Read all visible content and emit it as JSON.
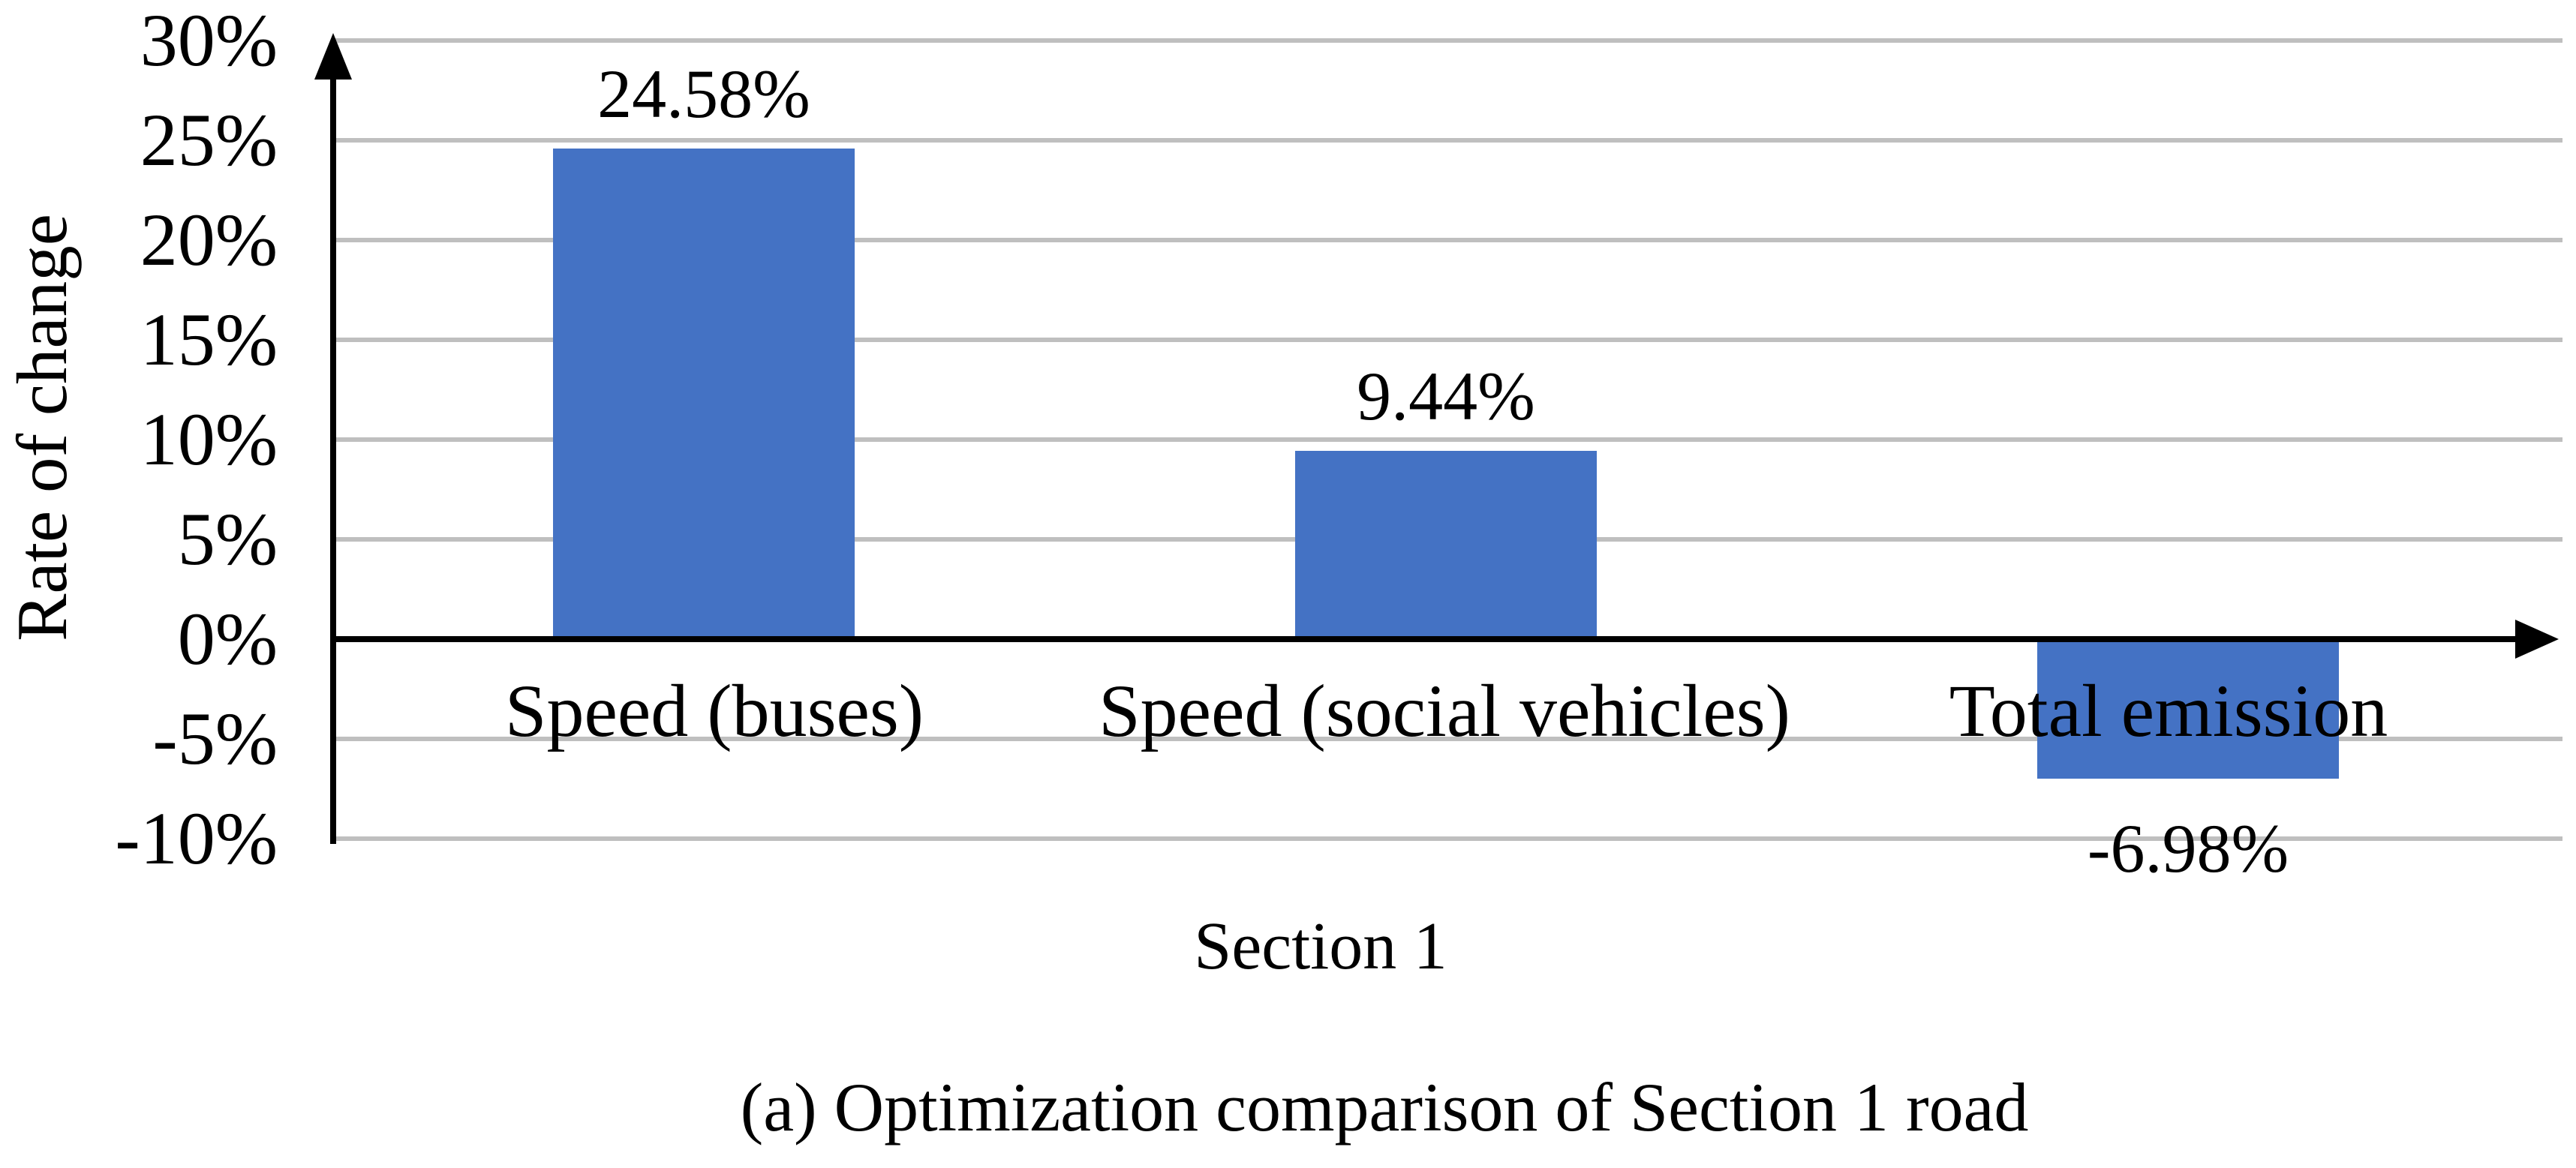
{
  "figure": {
    "caption": "(a) Optimization comparison of Section 1 road"
  },
  "chart_data": {
    "type": "bar",
    "title": "",
    "xlabel": "Section 1",
    "ylabel": "Rate of change",
    "categories": [
      "Speed (buses)",
      "Speed (social vehicles)",
      "Total emission"
    ],
    "values": [
      24.58,
      9.44,
      -6.98
    ],
    "data_labels": [
      "24.58%",
      "9.44%",
      "-6.98%"
    ],
    "y_tick_labels": [
      "30%",
      "25%",
      "20%",
      "15%",
      "10%",
      "5%",
      "0%",
      "-5%",
      "-10%"
    ],
    "y_tick_values": [
      30,
      25,
      20,
      15,
      10,
      5,
      0,
      -5,
      -10
    ],
    "ylim": [
      -10,
      30
    ],
    "grid": true,
    "legend": false,
    "colors": {
      "bar": "#4472C4",
      "gridline": "#BFBFBF",
      "axis": "#000000",
      "text": "#000000"
    }
  }
}
